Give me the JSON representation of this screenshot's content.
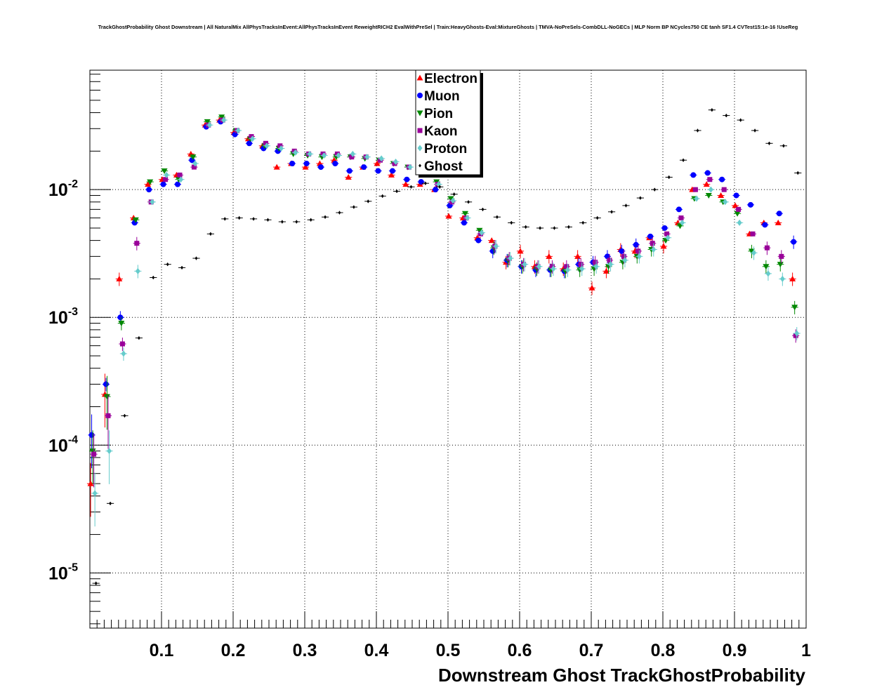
{
  "chart_data": {
    "type": "scatter",
    "title": "TrackGhostProbability Ghost Downstream | All NaturalMix AllPhysTracksInEvent:AllPhysTracksInEvent ReweightRICH2 EvalWithPreSel | Train:HeavyGhosts-Eval:MixtureGhosts | TMVA-NoPreSels-CombDLL-NoGECs | MLP Norm BP NCycles750 CE tanh SF1.4 CVTest15:1e-16 !UseReg",
    "xlabel": "Downstream Ghost TrackGhostProbability",
    "ylabel": "",
    "xlim": [
      0,
      1
    ],
    "ylim": [
      3.7e-06,
      0.086
    ],
    "yscale": "log",
    "grid": true,
    "legend_position": "top-center",
    "x_ticks": [
      "0.1",
      "0.2",
      "0.3",
      "0.4",
      "0.5",
      "0.6",
      "0.7",
      "0.8",
      "0.9",
      "1"
    ],
    "y_ticks": [
      {
        "base": "10",
        "exp": "-2",
        "value": 0.01
      },
      {
        "base": "10",
        "exp": "-3",
        "value": 0.001
      },
      {
        "base": "10",
        "exp": "-4",
        "value": 0.0001
      },
      {
        "base": "10",
        "exp": "-5",
        "value": 1e-05
      }
    ],
    "x": [
      0.005,
      0.025,
      0.045,
      0.065,
      0.085,
      0.105,
      0.125,
      0.145,
      0.165,
      0.185,
      0.205,
      0.225,
      0.245,
      0.265,
      0.285,
      0.305,
      0.325,
      0.345,
      0.365,
      0.385,
      0.405,
      0.425,
      0.445,
      0.465,
      0.485,
      0.505,
      0.525,
      0.545,
      0.565,
      0.585,
      0.605,
      0.625,
      0.645,
      0.665,
      0.685,
      0.705,
      0.725,
      0.745,
      0.765,
      0.785,
      0.805,
      0.825,
      0.845,
      0.865,
      0.885,
      0.905,
      0.925,
      0.945,
      0.965,
      0.985
    ],
    "series": [
      {
        "name": "Electron",
        "color": "#ff0000",
        "marker": "triangle-up",
        "values": [
          5e-05,
          0.00025,
          0.002,
          0.006,
          0.011,
          0.012,
          0.013,
          0.019,
          0.032,
          0.035,
          0.028,
          0.025,
          0.022,
          0.015,
          0.016,
          0.015,
          0.016,
          0.017,
          0.0125,
          0.015,
          0.016,
          0.013,
          0.011,
          0.011,
          0.01,
          0.0062,
          0.006,
          0.0042,
          0.004,
          0.0027,
          0.0033,
          0.0025,
          0.003,
          0.0024,
          0.003,
          0.0017,
          0.0023,
          0.0034,
          0.0033,
          0.0042,
          0.0036,
          0.0055,
          0.01,
          0.011,
          0.009,
          0.0075,
          0.0045,
          0.0055,
          0.0055,
          0.002
        ]
      },
      {
        "name": "Muon",
        "color": "#0000ff",
        "marker": "circle",
        "values": [
          0.00012,
          0.0003,
          0.001,
          0.0055,
          0.01,
          0.011,
          0.011,
          0.017,
          0.031,
          0.034,
          0.027,
          0.023,
          0.021,
          0.02,
          0.016,
          0.016,
          0.015,
          0.016,
          0.014,
          0.015,
          0.014,
          0.014,
          0.012,
          0.0115,
          0.01,
          0.0075,
          0.0055,
          0.004,
          0.0033,
          0.0028,
          0.0025,
          0.00235,
          0.00235,
          0.0023,
          0.0026,
          0.0027,
          0.003,
          0.0033,
          0.0037,
          0.0043,
          0.005,
          0.007,
          0.013,
          0.0135,
          0.012,
          0.009,
          0.0076,
          0.0053,
          0.0065,
          0.0039
        ]
      },
      {
        "name": "Pion",
        "color": "#008800",
        "marker": "triangle-down",
        "values": [
          9e-05,
          0.00024,
          0.0009,
          0.0058,
          0.0115,
          0.014,
          0.012,
          0.018,
          0.034,
          0.037,
          0.029,
          0.025,
          0.022,
          0.021,
          0.019,
          0.0185,
          0.018,
          0.018,
          0.018,
          0.0175,
          0.017,
          0.016,
          0.015,
          0.0135,
          0.0115,
          0.0085,
          0.0065,
          0.0048,
          0.0035,
          0.0028,
          0.0025,
          0.0024,
          0.00235,
          0.0023,
          0.00235,
          0.0024,
          0.0025,
          0.0027,
          0.003,
          0.0034,
          0.004,
          0.0052,
          0.0085,
          0.009,
          0.008,
          0.0065,
          0.0033,
          0.0025,
          0.0026,
          0.0012
        ]
      },
      {
        "name": "Kaon",
        "color": "#990099",
        "marker": "square",
        "values": [
          8.5e-05,
          0.00017,
          0.00062,
          0.0038,
          0.008,
          0.012,
          0.013,
          0.015,
          0.032,
          0.035,
          0.029,
          0.026,
          0.023,
          0.022,
          0.02,
          0.019,
          0.019,
          0.019,
          0.018,
          0.018,
          0.017,
          0.016,
          0.015,
          0.0135,
          0.011,
          0.008,
          0.006,
          0.0045,
          0.0036,
          0.0029,
          0.0026,
          0.0025,
          0.0025,
          0.0025,
          0.0026,
          0.0027,
          0.0028,
          0.003,
          0.0033,
          0.0038,
          0.0045,
          0.006,
          0.01,
          0.012,
          0.01,
          0.007,
          0.0045,
          0.0035,
          0.003,
          0.00072
        ]
      },
      {
        "name": "Proton",
        "color": "#66cccc",
        "marker": "diamond",
        "values": [
          4.2e-05,
          9e-05,
          0.00052,
          0.0023,
          0.008,
          0.013,
          0.012,
          0.016,
          0.032,
          0.035,
          0.029,
          0.025,
          0.022,
          0.021,
          0.0195,
          0.019,
          0.0185,
          0.0185,
          0.019,
          0.018,
          0.0175,
          0.0165,
          0.015,
          0.0135,
          0.011,
          0.0082,
          0.006,
          0.0046,
          0.0036,
          0.0029,
          0.0026,
          0.0025,
          0.0024,
          0.00235,
          0.0024,
          0.0025,
          0.0026,
          0.0028,
          0.003,
          0.0034,
          0.0042,
          0.0055,
          0.0085,
          0.01,
          0.008,
          0.0055,
          0.0032,
          0.0022,
          0.002,
          0.00075
        ]
      },
      {
        "name": "Ghost",
        "color": "#000000",
        "marker": "small-diamond",
        "values": [
          8.3e-06,
          3.5e-05,
          0.00017,
          0.00069,
          0.00205,
          0.0026,
          0.00245,
          0.0029,
          0.0045,
          0.0059,
          0.006,
          0.0059,
          0.0058,
          0.0056,
          0.0056,
          0.0058,
          0.0061,
          0.0066,
          0.0073,
          0.0081,
          0.0089,
          0.0097,
          0.0105,
          0.0112,
          0.0105,
          0.0092,
          0.008,
          0.007,
          0.0061,
          0.0055,
          0.0051,
          0.005,
          0.005,
          0.0051,
          0.0055,
          0.006,
          0.0067,
          0.0075,
          0.0086,
          0.01,
          0.0125,
          0.017,
          0.029,
          0.042,
          0.038,
          0.035,
          0.029,
          0.023,
          0.022,
          0.0135
        ]
      }
    ]
  }
}
